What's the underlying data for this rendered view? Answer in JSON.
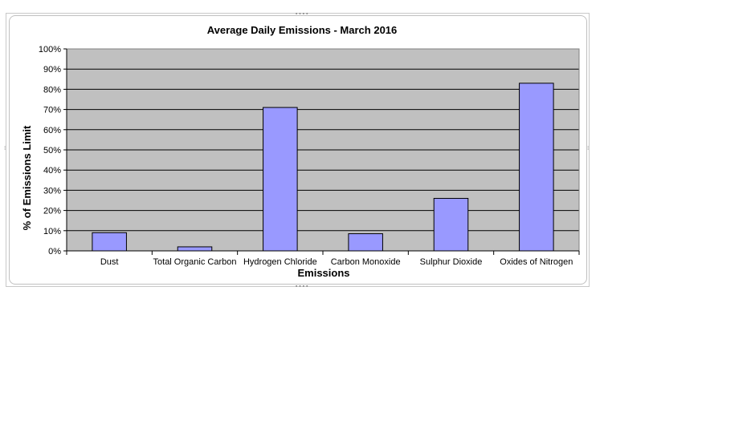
{
  "chart_data": {
    "type": "bar",
    "title": "Average Daily Emissions - March 2016",
    "xlabel": "Emissions",
    "ylabel": "% of Emissions Limit",
    "categories": [
      "Dust",
      "Total Organic Carbon",
      "Hydrogen Chloride",
      "Carbon Monoxide",
      "Sulphur Dioxide",
      "Oxides of Nitrogen"
    ],
    "values": [
      9,
      2,
      71,
      8.5,
      26,
      83
    ],
    "ylim": [
      0,
      100
    ],
    "yticks": [
      "0%",
      "10%",
      "20%",
      "30%",
      "40%",
      "50%",
      "60%",
      "70%",
      "80%",
      "90%",
      "100%"
    ],
    "grid": true,
    "colors": {
      "bar": "#9999ff",
      "bar_border": "#000000",
      "plot_bg": "#c0c0c0",
      "grid": "#000000"
    }
  }
}
